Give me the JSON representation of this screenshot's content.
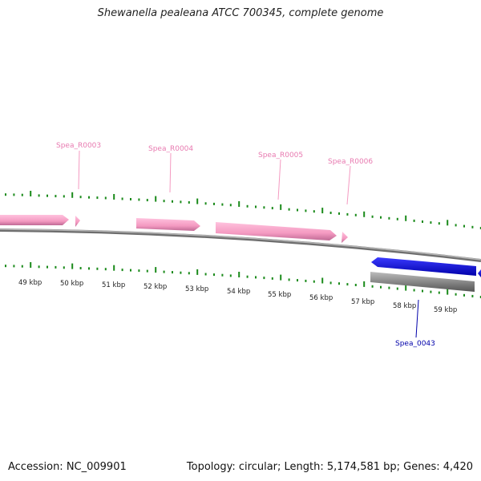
{
  "title": "Shewanella pealeana ATCC 700345, complete genome",
  "footer": {
    "accession": "Accession: NC_009901",
    "summary": "Topology: circular; Length: 5,174,581 bp; Genes: 4,420"
  },
  "colors": {
    "rrna": "#f49ac1",
    "rrna_label": "#e87ab0",
    "cds": "#0000ff",
    "cds_label": "#0000aa",
    "backbone": "#8a8a8a",
    "ticks": "#1a8a1a",
    "gray_feature": "#777777"
  },
  "ruler": {
    "labels": [
      "49 kbp",
      "50 kbp",
      "51 kbp",
      "52 kbp",
      "53 kbp",
      "54 kbp",
      "55 kbp",
      "56 kbp",
      "57 kbp",
      "58 kbp",
      "59 kbp"
    ]
  },
  "features": {
    "rrna_labels": [
      "Spea_R0003",
      "Spea_R0004",
      "Spea_R0005",
      "Spea_R0006"
    ],
    "cds_labels": [
      "Spea_0043"
    ]
  }
}
